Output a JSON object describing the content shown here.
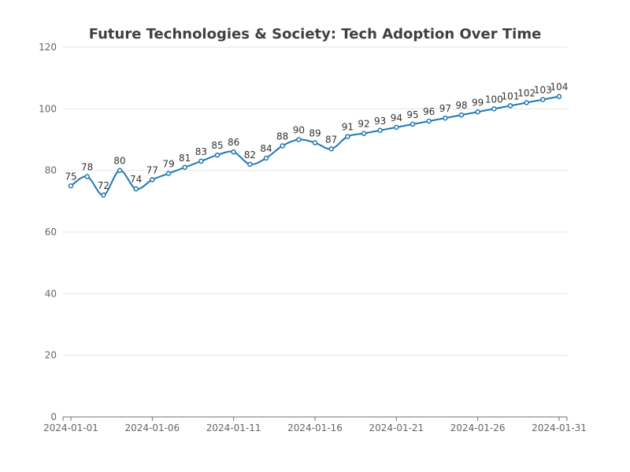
{
  "chart_data": {
    "type": "line",
    "title": "Future Technologies & Society: Tech Adoption Over Time",
    "xlabel": "",
    "ylabel": "",
    "ylim": [
      0,
      120
    ],
    "yticks": [
      0,
      20,
      40,
      60,
      80,
      100,
      120
    ],
    "xtick_labels": [
      "2024-01-01",
      "2024-01-06",
      "2024-01-11",
      "2024-01-16",
      "2024-01-21",
      "2024-01-26",
      "2024-01-31"
    ],
    "x": [
      "2024-01-01",
      "2024-01-02",
      "2024-01-03",
      "2024-01-04",
      "2024-01-05",
      "2024-01-06",
      "2024-01-07",
      "2024-01-08",
      "2024-01-09",
      "2024-01-10",
      "2024-01-11",
      "2024-01-12",
      "2024-01-13",
      "2024-01-14",
      "2024-01-15",
      "2024-01-16",
      "2024-01-17",
      "2024-01-18",
      "2024-01-19",
      "2024-01-20",
      "2024-01-21",
      "2024-01-22",
      "2024-01-23",
      "2024-01-24",
      "2024-01-25",
      "2024-01-26",
      "2024-01-27",
      "2024-01-28",
      "2024-01-29",
      "2024-01-30",
      "2024-01-31"
    ],
    "series": [
      {
        "color": "#1f77b4",
        "smooth": true,
        "values": [
          75,
          78,
          72,
          80,
          74,
          77,
          79,
          81,
          83,
          85,
          86,
          82,
          84,
          88,
          90,
          89,
          87,
          91,
          92,
          93,
          94,
          95,
          96,
          97,
          98,
          99,
          100,
          101,
          102,
          103,
          104
        ]
      }
    ],
    "grid": true,
    "legend": "none"
  }
}
